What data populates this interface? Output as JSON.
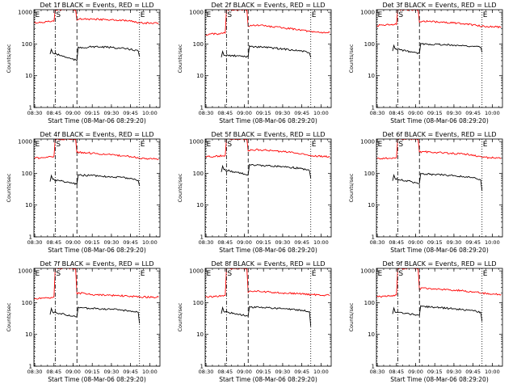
{
  "chart_data": [
    {
      "type": "line",
      "title": "Det 1f BLACK = Events, RED = LLD",
      "xlabel": "Start Time (08-Mar-06 08:29:20)",
      "ylabel": "Counts/sec",
      "x_ticks": [
        "08:30",
        "08:45",
        "09:00",
        "09:15",
        "09:30",
        "09:45",
        "10:00"
      ],
      "y_ticks": [
        "1",
        "10",
        "100",
        "1000"
      ],
      "y_scale": "log",
      "xlim": [
        "08:29:20",
        "10:08:00"
      ],
      "ylim": [
        1,
        1200
      ],
      "markers": [
        {
          "label": "E",
          "x": "08:29:40",
          "style": "dotted"
        },
        {
          "label": "S",
          "x": "08:46:00",
          "style": "dash-dot"
        },
        {
          "label": "",
          "x": "09:03:00",
          "style": "dashed"
        },
        {
          "label": "E",
          "x": "09:52:00",
          "style": "dotted"
        }
      ],
      "series": [
        {
          "name": "RED = LLD",
          "color": "#ff0000",
          "x": [
            "08:29:20",
            "08:40:00",
            "08:45:00",
            "08:46:00",
            "09:02:00",
            "09:03:00",
            "09:05:00",
            "09:15:00",
            "09:30:00",
            "09:45:00",
            "09:52:00",
            "10:07:00"
          ],
          "values": [
            460,
            500,
            520,
            1200,
            1200,
            560,
            620,
            600,
            580,
            520,
            460,
            450
          ]
        },
        {
          "name": "BLACK = Events",
          "color": "#000000",
          "x": [
            "08:42:00",
            "08:43:00",
            "08:44:00",
            "09:03:00",
            "09:04:00",
            "09:05:00",
            "09:15:00",
            "09:30:00",
            "09:45:00",
            "09:51:00",
            "09:52:00"
          ],
          "values": [
            48,
            68,
            52,
            30,
            80,
            75,
            82,
            78,
            68,
            60,
            40
          ]
        }
      ]
    },
    {
      "type": "line",
      "title": "Det 2f BLACK = Events, RED = LLD",
      "xlabel": "Start Time (08-Mar-06 08:29:20)",
      "ylabel": "Counts/sec",
      "x_ticks": [
        "08:30",
        "08:45",
        "09:00",
        "09:15",
        "09:30",
        "09:45",
        "10:00"
      ],
      "y_ticks": [
        "1",
        "10",
        "100",
        "1000"
      ],
      "y_scale": "log",
      "xlim": [
        "08:29:20",
        "10:08:00"
      ],
      "ylim": [
        1,
        1200
      ],
      "markers": [
        {
          "label": "E",
          "x": "08:29:40",
          "style": "dotted"
        },
        {
          "label": "S",
          "x": "08:46:00",
          "style": "dash-dot"
        },
        {
          "label": "",
          "x": "09:03:00",
          "style": "dashed"
        },
        {
          "label": "E",
          "x": "09:52:00",
          "style": "dotted"
        }
      ],
      "series": [
        {
          "name": "RED = LLD",
          "color": "#ff0000",
          "x": [
            "08:29:20",
            "08:40:00",
            "08:45:00",
            "08:46:00",
            "09:02:00",
            "09:03:00",
            "09:05:00",
            "09:15:00",
            "09:30:00",
            "09:45:00",
            "09:52:00",
            "10:07:00"
          ],
          "values": [
            200,
            210,
            220,
            1200,
            1200,
            360,
            390,
            380,
            320,
            280,
            240,
            230
          ]
        },
        {
          "name": "BLACK = Events",
          "color": "#000000",
          "x": [
            "08:42:00",
            "08:43:00",
            "08:44:00",
            "09:03:00",
            "09:04:00",
            "09:05:00",
            "09:15:00",
            "09:30:00",
            "09:45:00",
            "09:51:00",
            "09:52:00"
          ],
          "values": [
            38,
            58,
            44,
            40,
            88,
            82,
            80,
            70,
            60,
            52,
            38
          ]
        }
      ]
    },
    {
      "type": "line",
      "title": "Det 3f BLACK = Events, RED = LLD",
      "xlabel": "Start Time (08-Mar-06 08:29:20)",
      "ylabel": "Counts/sec",
      "x_ticks": [
        "08:30",
        "08:45",
        "09:00",
        "09:15",
        "09:30",
        "09:45",
        "10:00"
      ],
      "y_ticks": [
        "1",
        "10",
        "100",
        "1000"
      ],
      "y_scale": "log",
      "xlim": [
        "08:29:20",
        "10:08:00"
      ],
      "ylim": [
        1,
        1200
      ],
      "markers": [
        {
          "label": "E",
          "x": "08:29:40",
          "style": "dotted"
        },
        {
          "label": "S",
          "x": "08:46:00",
          "style": "dash-dot"
        },
        {
          "label": "",
          "x": "09:03:00",
          "style": "dashed"
        },
        {
          "label": "E",
          "x": "09:52:00",
          "style": "dotted"
        }
      ],
      "series": [
        {
          "name": "RED = LLD",
          "color": "#ff0000",
          "x": [
            "08:29:20",
            "08:40:00",
            "08:45:00",
            "08:46:00",
            "09:02:00",
            "09:03:00",
            "09:05:00",
            "09:15:00",
            "09:30:00",
            "09:45:00",
            "09:52:00",
            "10:07:00"
          ],
          "values": [
            380,
            400,
            410,
            1200,
            1200,
            480,
            520,
            500,
            460,
            400,
            360,
            340
          ]
        },
        {
          "name": "BLACK = Events",
          "color": "#000000",
          "x": [
            "08:42:00",
            "08:43:00",
            "08:44:00",
            "09:03:00",
            "09:04:00",
            "09:05:00",
            "09:15:00",
            "09:30:00",
            "09:45:00",
            "09:51:00",
            "09:52:00"
          ],
          "values": [
            60,
            90,
            70,
            50,
            105,
            100,
            98,
            92,
            85,
            80,
            55
          ]
        }
      ]
    },
    {
      "type": "line",
      "title": "Det 4f BLACK = Events, RED = LLD",
      "xlabel": "Start Time (08-Mar-06 08:29:20)",
      "ylabel": "Counts/sec",
      "x_ticks": [
        "08:30",
        "08:45",
        "09:00",
        "09:15",
        "09:30",
        "09:45",
        "10:00"
      ],
      "y_ticks": [
        "1",
        "10",
        "100",
        "1000"
      ],
      "y_scale": "log",
      "xlim": [
        "08:29:20",
        "10:08:00"
      ],
      "ylim": [
        1,
        1200
      ],
      "markers": [
        {
          "label": "E",
          "x": "08:29:40",
          "style": "dotted"
        },
        {
          "label": "S",
          "x": "08:46:00",
          "style": "dash-dot"
        },
        {
          "label": "",
          "x": "09:03:00",
          "style": "dashed"
        },
        {
          "label": "E",
          "x": "09:52:00",
          "style": "dotted"
        }
      ],
      "series": [
        {
          "name": "RED = LLD",
          "color": "#ff0000",
          "x": [
            "08:29:20",
            "08:40:00",
            "08:45:00",
            "08:46:00",
            "09:02:00",
            "09:03:00",
            "09:05:00",
            "09:15:00",
            "09:30:00",
            "09:45:00",
            "09:52:00",
            "10:07:00"
          ],
          "values": [
            300,
            320,
            340,
            1200,
            1200,
            440,
            460,
            430,
            380,
            340,
            300,
            280
          ]
        },
        {
          "name": "BLACK = Events",
          "color": "#000000",
          "x": [
            "08:42:00",
            "08:43:00",
            "08:44:00",
            "09:03:00",
            "09:04:00",
            "09:05:00",
            "09:15:00",
            "09:30:00",
            "09:45:00",
            "09:51:00",
            "09:52:00"
          ],
          "values": [
            55,
            85,
            65,
            45,
            90,
            88,
            85,
            78,
            70,
            60,
            40
          ]
        }
      ]
    },
    {
      "type": "line",
      "title": "Det 5f BLACK = Events, RED = LLD",
      "xlabel": "Start Time (08-Mar-06 08:29:20)",
      "ylabel": "Counts/sec",
      "x_ticks": [
        "08:30",
        "08:45",
        "09:00",
        "09:15",
        "09:30",
        "09:45",
        "10:00"
      ],
      "y_ticks": [
        "1",
        "10",
        "100",
        "1000"
      ],
      "y_scale": "log",
      "xlim": [
        "08:29:20",
        "10:08:00"
      ],
      "ylim": [
        1,
        1200
      ],
      "markers": [
        {
          "label": "E",
          "x": "08:29:40",
          "style": "dotted"
        },
        {
          "label": "S",
          "x": "08:46:00",
          "style": "dash-dot"
        },
        {
          "label": "",
          "x": "09:03:00",
          "style": "dashed"
        },
        {
          "label": "E",
          "x": "09:52:00",
          "style": "dotted"
        }
      ],
      "series": [
        {
          "name": "RED = LLD",
          "color": "#ff0000",
          "x": [
            "08:29:20",
            "08:40:00",
            "08:45:00",
            "08:46:00",
            "09:02:00",
            "09:03:00",
            "09:05:00",
            "09:15:00",
            "09:30:00",
            "09:45:00",
            "09:52:00",
            "10:07:00"
          ],
          "values": [
            330,
            350,
            360,
            1200,
            1200,
            500,
            560,
            540,
            480,
            420,
            360,
            330
          ]
        },
        {
          "name": "BLACK = Events",
          "color": "#000000",
          "x": [
            "08:42:00",
            "08:43:00",
            "08:44:00",
            "09:03:00",
            "09:04:00",
            "09:05:00",
            "09:15:00",
            "09:30:00",
            "09:45:00",
            "09:51:00",
            "09:52:00"
          ],
          "values": [
            110,
            170,
            130,
            90,
            190,
            180,
            175,
            165,
            140,
            120,
            70
          ]
        }
      ]
    },
    {
      "type": "line",
      "title": "Det 6f BLACK = Events, RED = LLD",
      "xlabel": "Start Time (08-Mar-06 08:29:20)",
      "ylabel": "Counts/sec",
      "x_ticks": [
        "08:30",
        "08:45",
        "09:00",
        "09:15",
        "09:30",
        "09:45",
        "10:00"
      ],
      "y_ticks": [
        "1",
        "10",
        "100",
        "1000"
      ],
      "y_scale": "log",
      "xlim": [
        "08:29:20",
        "10:08:00"
      ],
      "ylim": [
        1,
        1200
      ],
      "markers": [
        {
          "label": "E",
          "x": "08:29:40",
          "style": "dotted"
        },
        {
          "label": "S",
          "x": "08:46:00",
          "style": "dash-dot"
        },
        {
          "label": "",
          "x": "09:03:00",
          "style": "dashed"
        },
        {
          "label": "E",
          "x": "09:52:00",
          "style": "dotted"
        }
      ],
      "series": [
        {
          "name": "RED = LLD",
          "color": "#ff0000",
          "x": [
            "08:29:20",
            "08:40:00",
            "08:45:00",
            "08:46:00",
            "09:02:00",
            "09:03:00",
            "09:05:00",
            "09:15:00",
            "09:30:00",
            "09:45:00",
            "09:52:00",
            "10:07:00"
          ],
          "values": [
            290,
            300,
            310,
            1200,
            1200,
            460,
            480,
            460,
            420,
            380,
            320,
            300
          ]
        },
        {
          "name": "BLACK = Events",
          "color": "#000000",
          "x": [
            "08:42:00",
            "08:43:00",
            "08:44:00",
            "09:03:00",
            "09:04:00",
            "09:05:00",
            "09:15:00",
            "09:30:00",
            "09:45:00",
            "09:51:00",
            "09:52:00"
          ],
          "values": [
            58,
            88,
            68,
            48,
            100,
            96,
            92,
            85,
            72,
            62,
            28
          ]
        }
      ]
    },
    {
      "type": "line",
      "title": "Det 7f BLACK = Events, RED = LLD",
      "xlabel": "Start Time (08-Mar-06 08:29:20)",
      "ylabel": "Counts/sec",
      "x_ticks": [
        "08:30",
        "08:45",
        "09:00",
        "09:15",
        "09:30",
        "09:45",
        "10:00"
      ],
      "y_ticks": [
        "1",
        "10",
        "100",
        "1000"
      ],
      "y_scale": "log",
      "xlim": [
        "08:29:20",
        "10:08:00"
      ],
      "ylim": [
        1,
        1200
      ],
      "markers": [
        {
          "label": "E",
          "x": "08:29:40",
          "style": "dotted"
        },
        {
          "label": "S",
          "x": "08:46:00",
          "style": "dash-dot"
        },
        {
          "label": "",
          "x": "09:03:00",
          "style": "dashed"
        },
        {
          "label": "E",
          "x": "09:52:00",
          "style": "dotted"
        }
      ],
      "series": [
        {
          "name": "RED = LLD",
          "color": "#ff0000",
          "x": [
            "08:29:20",
            "08:40:00",
            "08:45:00",
            "08:46:00",
            "09:02:00",
            "09:03:00",
            "09:05:00",
            "09:15:00",
            "09:30:00",
            "09:45:00",
            "09:52:00",
            "10:07:00"
          ],
          "values": [
            130,
            140,
            150,
            1200,
            1200,
            190,
            200,
            180,
            170,
            160,
            150,
            150
          ]
        },
        {
          "name": "BLACK = Events",
          "color": "#000000",
          "x": [
            "08:42:00",
            "08:43:00",
            "08:44:00",
            "09:03:00",
            "09:04:00",
            "09:05:00",
            "09:15:00",
            "09:30:00",
            "09:45:00",
            "09:51:00",
            "09:52:00"
          ],
          "values": [
            42,
            66,
            50,
            36,
            72,
            68,
            66,
            62,
            55,
            50,
            22
          ]
        }
      ]
    },
    {
      "type": "line",
      "title": "Det 8f BLACK = Events, RED = LLD",
      "xlabel": "Start Time (08-Mar-06 08:29:20)",
      "ylabel": "Counts/sec",
      "x_ticks": [
        "08:30",
        "08:45",
        "09:00",
        "09:15",
        "09:30",
        "09:45",
        "10:00"
      ],
      "y_ticks": [
        "1",
        "10",
        "100",
        "1000"
      ],
      "y_scale": "log",
      "xlim": [
        "08:29:20",
        "10:08:00"
      ],
      "ylim": [
        1,
        1200
      ],
      "markers": [
        {
          "label": "E",
          "x": "08:29:40",
          "style": "dotted"
        },
        {
          "label": "S",
          "x": "08:46:00",
          "style": "dash-dot"
        },
        {
          "label": "",
          "x": "09:03:00",
          "style": "dashed"
        },
        {
          "label": "E",
          "x": "09:52:00",
          "style": "dotted"
        }
      ],
      "series": [
        {
          "name": "RED = LLD",
          "color": "#ff0000",
          "x": [
            "08:29:20",
            "08:40:00",
            "08:45:00",
            "08:46:00",
            "09:02:00",
            "09:03:00",
            "09:05:00",
            "09:15:00",
            "09:30:00",
            "09:45:00",
            "09:52:00",
            "10:07:00"
          ],
          "values": [
            150,
            160,
            170,
            1200,
            1200,
            210,
            230,
            220,
            200,
            190,
            180,
            170
          ]
        },
        {
          "name": "BLACK = Events",
          "color": "#000000",
          "x": [
            "08:42:00",
            "08:43:00",
            "08:44:00",
            "09:03:00",
            "09:04:00",
            "09:05:00",
            "09:15:00",
            "09:30:00",
            "09:45:00",
            "09:51:00",
            "09:52:00"
          ],
          "values": [
            45,
            70,
            52,
            38,
            75,
            72,
            70,
            65,
            58,
            52,
            18
          ]
        }
      ]
    },
    {
      "type": "line",
      "title": "Det 9f BLACK = Events, RED = LLD",
      "xlabel": "Start Time (08-Mar-06 08:29:20)",
      "ylabel": "Counts/sec",
      "x_ticks": [
        "08:30",
        "08:45",
        "09:00",
        "09:15",
        "09:30",
        "09:45",
        "10:00"
      ],
      "y_ticks": [
        "1",
        "10",
        "100",
        "1000"
      ],
      "y_scale": "log",
      "xlim": [
        "08:29:20",
        "10:08:00"
      ],
      "ylim": [
        1,
        1200
      ],
      "markers": [
        {
          "label": "E",
          "x": "08:29:40",
          "style": "dotted"
        },
        {
          "label": "S",
          "x": "08:46:00",
          "style": "dash-dot"
        },
        {
          "label": "",
          "x": "09:03:00",
          "style": "dashed"
        },
        {
          "label": "E",
          "x": "09:52:00",
          "style": "dotted"
        }
      ],
      "series": [
        {
          "name": "RED = LLD",
          "color": "#ff0000",
          "x": [
            "08:29:20",
            "08:40:00",
            "08:45:00",
            "08:46:00",
            "09:02:00",
            "09:03:00",
            "09:05:00",
            "09:15:00",
            "09:30:00",
            "09:45:00",
            "09:52:00",
            "10:07:00"
          ],
          "values": [
            150,
            165,
            175,
            1200,
            1200,
            260,
            290,
            270,
            250,
            220,
            200,
            180
          ]
        },
        {
          "name": "BLACK = Events",
          "color": "#000000",
          "x": [
            "08:42:00",
            "08:43:00",
            "08:44:00",
            "09:03:00",
            "09:04:00",
            "09:05:00",
            "09:15:00",
            "09:30:00",
            "09:45:00",
            "09:51:00",
            "09:52:00"
          ],
          "values": [
            44,
            68,
            50,
            40,
            80,
            76,
            72,
            64,
            56,
            50,
            26
          ]
        }
      ]
    }
  ]
}
